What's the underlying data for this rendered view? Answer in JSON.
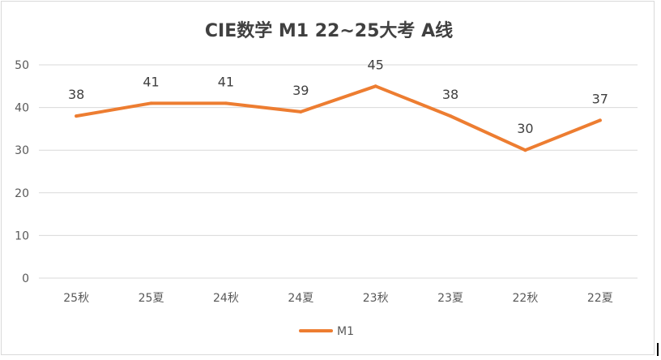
{
  "chart_data": {
    "type": "line",
    "title": "CIE数学 M1 22~25大考 A线",
    "xlabel": "",
    "ylabel": "",
    "categories": [
      "25秋",
      "25夏",
      "24秋",
      "24夏",
      "23秋",
      "23夏",
      "22秋",
      "22夏"
    ],
    "series": [
      {
        "name": "M1",
        "values": [
          38,
          41,
          41,
          39,
          45,
          38,
          30,
          37
        ],
        "color": "#ed7d31"
      }
    ],
    "ylim": [
      0,
      50
    ],
    "yticks": [
      "0",
      "10",
      "20",
      "30",
      "40",
      "50"
    ],
    "grid": true,
    "data_labels": true,
    "legend": "bottom",
    "colors": {
      "gridline": "#d9d9d9",
      "text": "#595959"
    }
  }
}
